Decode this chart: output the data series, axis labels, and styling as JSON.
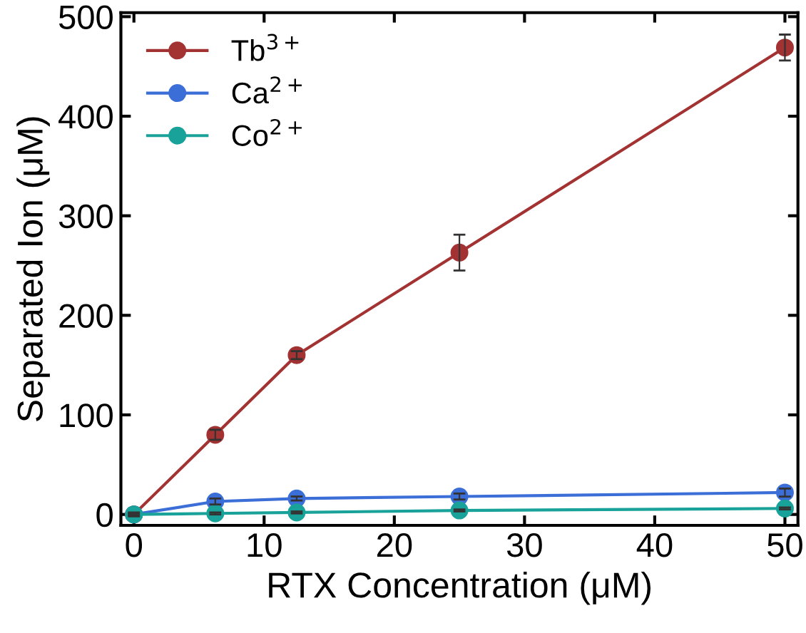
{
  "chart_data": {
    "type": "line",
    "xlabel": "RTX Concentration (μM)",
    "ylabel": "Separated Ion (μM)",
    "x": [
      0,
      6.25,
      12.5,
      25,
      50
    ],
    "series": [
      {
        "name": "Tb$^{3+}$",
        "color": "#a33232",
        "values": [
          0,
          80,
          160,
          263,
          469
        ],
        "errors": [
          2,
          5,
          4,
          18,
          13
        ]
      },
      {
        "name": "Ca$^{2+}$",
        "color": "#3c6ed8",
        "values": [
          0,
          13,
          16,
          18,
          22
        ],
        "errors": [
          1,
          3,
          2,
          3,
          4
        ]
      },
      {
        "name": "Co$^{2+}$",
        "color": "#18a29a",
        "values": [
          0,
          1,
          2,
          4,
          6
        ],
        "errors": [
          1,
          1,
          1,
          1,
          1
        ]
      }
    ],
    "xlim": [
      -1,
      51
    ],
    "ylim": [
      -11,
      504
    ],
    "xticks": [
      0,
      10,
      20,
      30,
      40,
      50
    ],
    "yticks": [
      0,
      100,
      200,
      300,
      400,
      500
    ],
    "marker": "circle",
    "line_style": "solid",
    "grid": false,
    "legend": "top left"
  }
}
